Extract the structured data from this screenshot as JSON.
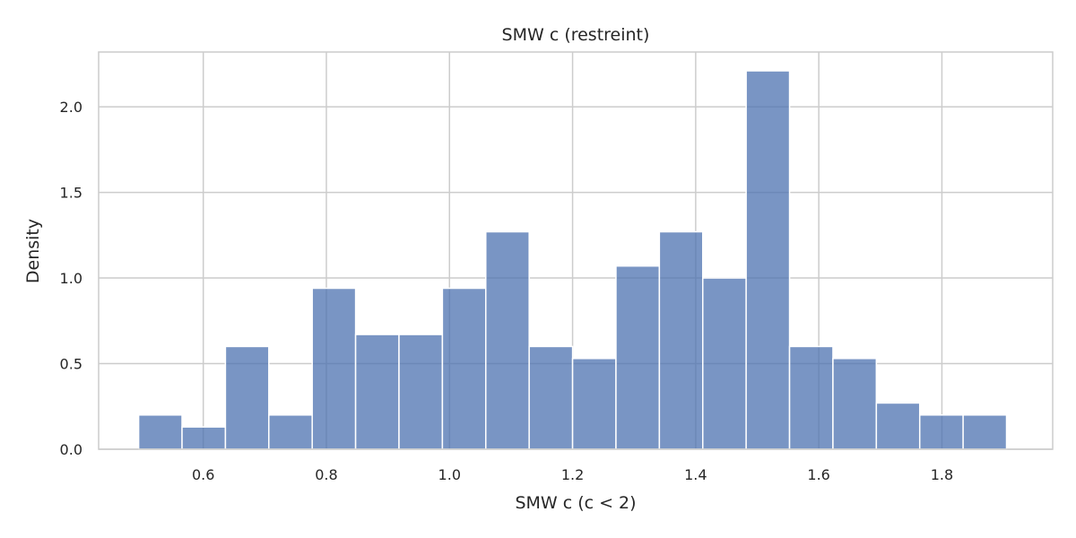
{
  "chart_data": {
    "type": "bar",
    "title": "SMW c (restreint)",
    "xlabel": "SMW c (c < 2)",
    "ylabel": "Density",
    "xlim": [
      0.43,
      1.98
    ],
    "ylim": [
      0,
      2.32
    ],
    "grid": true,
    "bar_color": "#4c72b0",
    "bins": [
      {
        "x0": 0.495,
        "x1": 0.5655,
        "density": 0.2
      },
      {
        "x0": 0.5655,
        "x1": 0.636,
        "density": 0.13
      },
      {
        "x0": 0.636,
        "x1": 0.7065,
        "density": 0.6
      },
      {
        "x0": 0.7065,
        "x1": 0.777,
        "density": 0.2
      },
      {
        "x0": 0.777,
        "x1": 0.8475,
        "density": 0.94
      },
      {
        "x0": 0.8475,
        "x1": 0.918,
        "density": 0.67
      },
      {
        "x0": 0.918,
        "x1": 0.9885,
        "density": 0.67
      },
      {
        "x0": 0.9885,
        "x1": 1.059,
        "density": 0.94
      },
      {
        "x0": 1.059,
        "x1": 1.1295,
        "density": 1.27
      },
      {
        "x0": 1.1295,
        "x1": 1.2,
        "density": 0.6
      },
      {
        "x0": 1.2,
        "x1": 1.2705,
        "density": 0.53
      },
      {
        "x0": 1.2705,
        "x1": 1.341,
        "density": 1.07
      },
      {
        "x0": 1.341,
        "x1": 1.4115,
        "density": 1.27
      },
      {
        "x0": 1.4115,
        "x1": 1.482,
        "density": 1.0
      },
      {
        "x0": 1.482,
        "x1": 1.5525,
        "density": 2.21
      },
      {
        "x0": 1.5525,
        "x1": 1.623,
        "density": 0.6
      },
      {
        "x0": 1.623,
        "x1": 1.6935,
        "density": 0.53
      },
      {
        "x0": 1.6935,
        "x1": 1.764,
        "density": 0.27
      },
      {
        "x0": 1.764,
        "x1": 1.8345,
        "density": 0.2
      },
      {
        "x0": 1.8345,
        "x1": 1.905,
        "density": 0.2
      }
    ],
    "xticks": [
      0.6,
      0.8,
      1.0,
      1.2,
      1.4,
      1.6,
      1.8
    ],
    "xtick_labels": [
      "0.6",
      "0.8",
      "1.0",
      "1.2",
      "1.4",
      "1.6",
      "1.8"
    ],
    "yticks": [
      0,
      0.5,
      1.0,
      1.5,
      2.0
    ],
    "ytick_labels": [
      "0.0",
      "0.5",
      "1.0",
      "1.5",
      "2.0"
    ]
  }
}
